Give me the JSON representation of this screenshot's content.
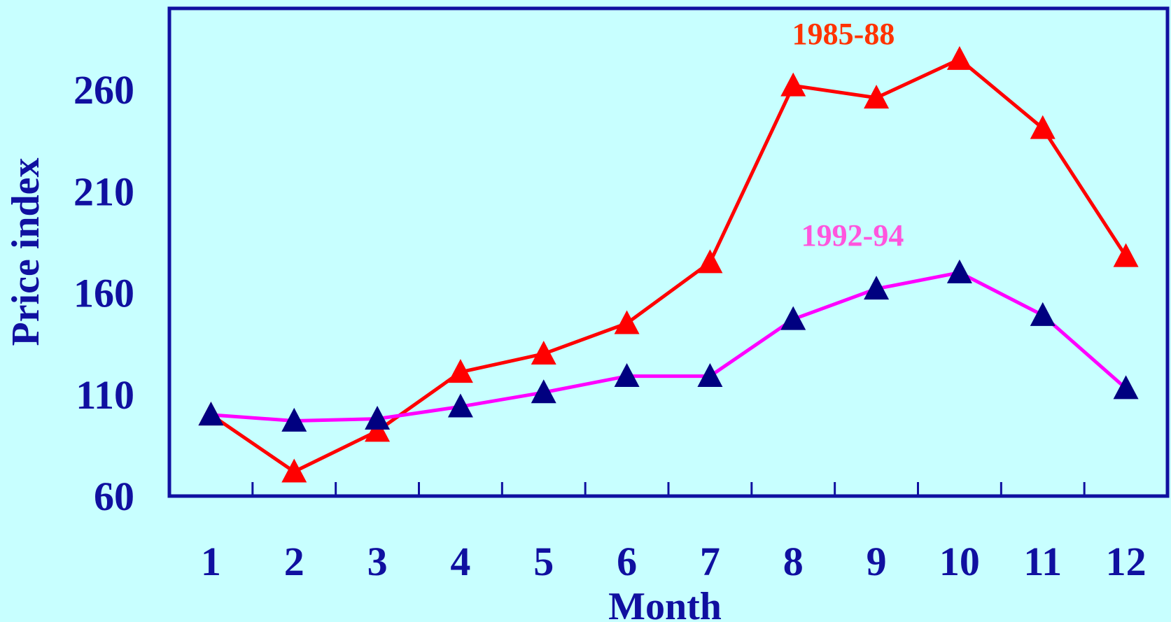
{
  "chart_data": {
    "type": "line",
    "xlabel": "Month",
    "ylabel": "Price index",
    "ylim": [
      60,
      300
    ],
    "xlim": [
      0.5,
      12.5
    ],
    "yticks": [
      60,
      110,
      160,
      210,
      260
    ],
    "x": [
      1,
      2,
      3,
      4,
      5,
      6,
      7,
      8,
      9,
      10,
      11,
      12
    ],
    "grid": false,
    "legend": "none",
    "series": [
      {
        "name": "1985-88",
        "color": "#ff0000",
        "marker_color": "#ff0000",
        "values": [
          100,
          72,
          92,
          121,
          130,
          145,
          175,
          262,
          256,
          275,
          241,
          178
        ]
      },
      {
        "name": "1992-94",
        "color": "#ff00ff",
        "marker_color": "#000080",
        "values": [
          100,
          97,
          98,
          104,
          111,
          119,
          119,
          147,
          162,
          170,
          149,
          113
        ]
      }
    ]
  },
  "colors": {
    "background": "#c8ffff",
    "axis": "#1010a0",
    "text": "#1010a0"
  }
}
